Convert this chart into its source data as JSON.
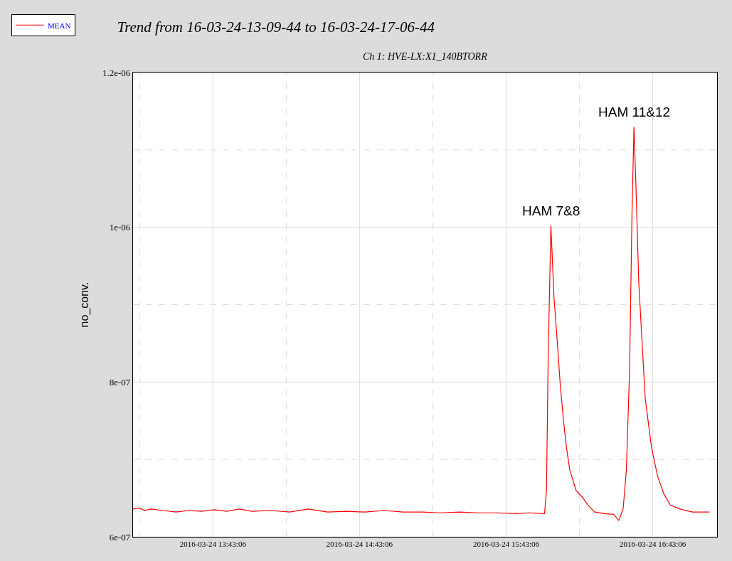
{
  "chart_data": {
    "type": "line",
    "title": "Trend from 16-03-24-13-09-44 to 16-03-24-17-06-44",
    "subtitle": "Ch 1: HVE-LX:X1_140BTORR",
    "ylabel": "no_conv.",
    "x": [
      "2016-03-24T13:10:24",
      "2016-03-24T13:13:12",
      "2016-03-24T13:15:12",
      "2016-03-24T13:17:48",
      "2016-03-24T13:22:54",
      "2016-03-24T13:28:00",
      "2016-03-24T13:33:12",
      "2016-03-24T13:38:24",
      "2016-03-24T13:43:36",
      "2016-03-24T13:48:48",
      "2016-03-24T13:53:54",
      "2016-03-24T13:59:06",
      "2016-03-24T14:06:48",
      "2016-03-24T14:14:30",
      "2016-03-24T14:22:12",
      "2016-03-24T14:30:00",
      "2016-03-24T14:37:42",
      "2016-03-24T14:45:24",
      "2016-03-24T14:53:06",
      "2016-03-24T15:00:54",
      "2016-03-24T15:08:36",
      "2016-03-24T15:16:18",
      "2016-03-24T15:24:00",
      "2016-03-24T15:31:48",
      "2016-03-24T15:39:30",
      "2016-03-24T15:47:12",
      "2016-03-24T15:52:24",
      "2016-03-24T15:58:48",
      "2016-03-24T15:59:36",
      "2016-03-24T16:00:18",
      "2016-03-24T16:01:24",
      "2016-03-24T16:02:42",
      "2016-03-24T16:04:00",
      "2016-03-24T16:05:12",
      "2016-03-24T16:06:30",
      "2016-03-24T16:07:48",
      "2016-03-24T16:09:06",
      "2016-03-24T16:11:42",
      "2016-03-24T16:14:18",
      "2016-03-24T16:16:48",
      "2016-03-24T16:19:24",
      "2016-03-24T16:23:18",
      "2016-03-24T16:27:06",
      "2016-03-24T16:29:12",
      "2016-03-24T16:31:00",
      "2016-03-24T16:32:18",
      "2016-03-24T16:33:36",
      "2016-03-24T16:34:36",
      "2016-03-24T16:35:24",
      "2016-03-24T16:36:06",
      "2016-03-24T16:37:24",
      "2016-03-24T16:40:00",
      "2016-03-24T16:42:36",
      "2016-03-24T16:45:06",
      "2016-03-24T16:47:42",
      "2016-03-24T16:50:18",
      "2016-03-24T16:54:12",
      "2016-03-24T16:59:18",
      "2016-03-24T17:06:18"
    ],
    "series": [
      {
        "name": "MEAN",
        "color": "#ff0000",
        "values": [
          6.36e-07,
          6.37e-07,
          6.34e-07,
          6.36e-07,
          6.34e-07,
          6.32e-07,
          6.34e-07,
          6.33e-07,
          6.35e-07,
          6.33e-07,
          6.36e-07,
          6.33e-07,
          6.34e-07,
          6.32e-07,
          6.36e-07,
          6.32e-07,
          6.33e-07,
          6.32e-07,
          6.34e-07,
          6.32e-07,
          6.32e-07,
          6.31e-07,
          6.32e-07,
          6.31e-07,
          6.31e-07,
          6.3e-07,
          6.31e-07,
          6.3e-07,
          6.6e-07,
          8.33e-07,
          1.002e-06,
          9.08e-07,
          8.53e-07,
          7.98e-07,
          7.52e-07,
          7.15e-07,
          6.87e-07,
          6.6e-07,
          6.51e-07,
          6.4e-07,
          6.32e-07,
          6.3e-07,
          6.29e-07,
          6.21e-07,
          6.37e-07,
          6.87e-07,
          8.15e-07,
          1.018e-06,
          1.13e-06,
          1.064e-06,
          9.26e-07,
          7.79e-07,
          7.15e-07,
          6.78e-07,
          6.55e-07,
          6.41e-07,
          6.36e-07,
          6.32e-07,
          6.32e-07
        ]
      }
    ],
    "xlim": [
      "2016-03-24T13:10:24",
      "2016-03-24T17:09:24"
    ],
    "xticks": [
      {
        "value": "2016-03-24T13:13:06",
        "label": null
      },
      {
        "value": "2016-03-24T13:43:06",
        "label": "2016-03-24 13:43:06"
      },
      {
        "value": "2016-03-24T14:13:06",
        "label": null
      },
      {
        "value": "2016-03-24T14:43:06",
        "label": "2016-03-24 14:43:06"
      },
      {
        "value": "2016-03-24T15:13:06",
        "label": null
      },
      {
        "value": "2016-03-24T15:43:06",
        "label": "2016-03-24 15:43:06"
      },
      {
        "value": "2016-03-24T16:13:06",
        "label": null
      },
      {
        "value": "2016-03-24T16:43:06",
        "label": "2016-03-24 16:43:06"
      }
    ],
    "ylim": [
      6e-07,
      1.2e-06
    ],
    "yticks": [
      {
        "value": 6e-07,
        "label": "6e-07"
      },
      {
        "value": 7e-07,
        "label": null
      },
      {
        "value": 8e-07,
        "label": "8e-07"
      },
      {
        "value": 9e-07,
        "label": null
      },
      {
        "value": 1e-06,
        "label": "1e-06"
      },
      {
        "value": 1.1e-06,
        "label": null
      },
      {
        "value": 1.2e-06,
        "label": "1.2e-06"
      }
    ],
    "annotations": [
      {
        "text": "HAM 7&8",
        "x": "2016-03-24T16:01:24",
        "y": 1.002e-06
      },
      {
        "text": "HAM 11&12",
        "x": "2016-03-24T16:35:24",
        "y": 1.13e-06
      }
    ],
    "grid": true,
    "legend": "top left",
    "marker": "none",
    "line_style": "solid"
  }
}
